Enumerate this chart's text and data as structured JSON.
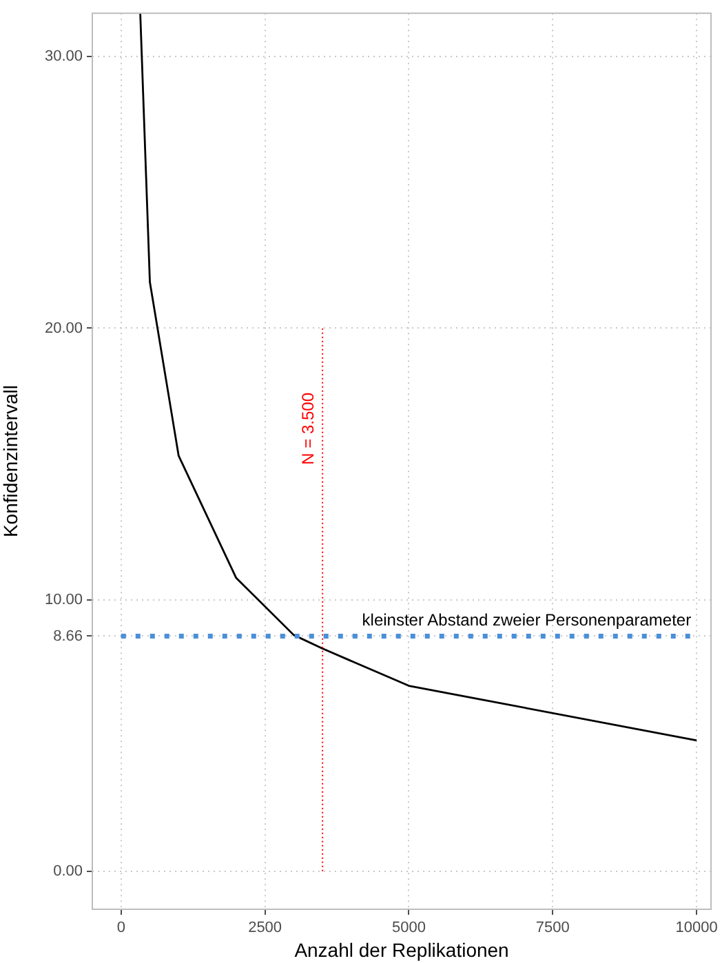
{
  "chart_data": {
    "type": "line",
    "xlabel": "Anzahl der Replikationen",
    "ylabel": "Konfidenzintervall",
    "x": [
      333,
      500,
      1000,
      2000,
      3000,
      3500,
      5000,
      10000
    ],
    "series": [
      {
        "color": "#000000",
        "values": [
          31.6,
          21.7,
          15.3,
          10.8,
          8.7,
          8.2,
          6.83,
          4.82
        ]
      }
    ],
    "xlim": [
      -500,
      10250
    ],
    "ylim": [
      -1.4,
      31.6
    ],
    "xticks": [
      0,
      2500,
      5000,
      7500,
      10000
    ],
    "yticks": [
      {
        "value": 0,
        "label": "0.00"
      },
      {
        "value": 8.66,
        "label": "8.66"
      },
      {
        "value": 10,
        "label": "10.00"
      },
      {
        "value": 20,
        "label": "20.00"
      },
      {
        "value": 30,
        "label": "30.00"
      }
    ],
    "grid": true,
    "legend": false,
    "marker": "none",
    "line_style": "solid",
    "annotations": [
      {
        "text": "N = 3.500",
        "x": 3500,
        "y": 16.3
      }
    ],
    "ref_lines": [
      {
        "axis": "x",
        "value": 3500,
        "color": "#ff0000",
        "line_style": "dotted"
      },
      {
        "axis": "y",
        "value": 8.66,
        "label": "kleinster Abstand zweier Personenparameter",
        "color": "#4a90d9",
        "line_style": "dotted"
      }
    ]
  }
}
